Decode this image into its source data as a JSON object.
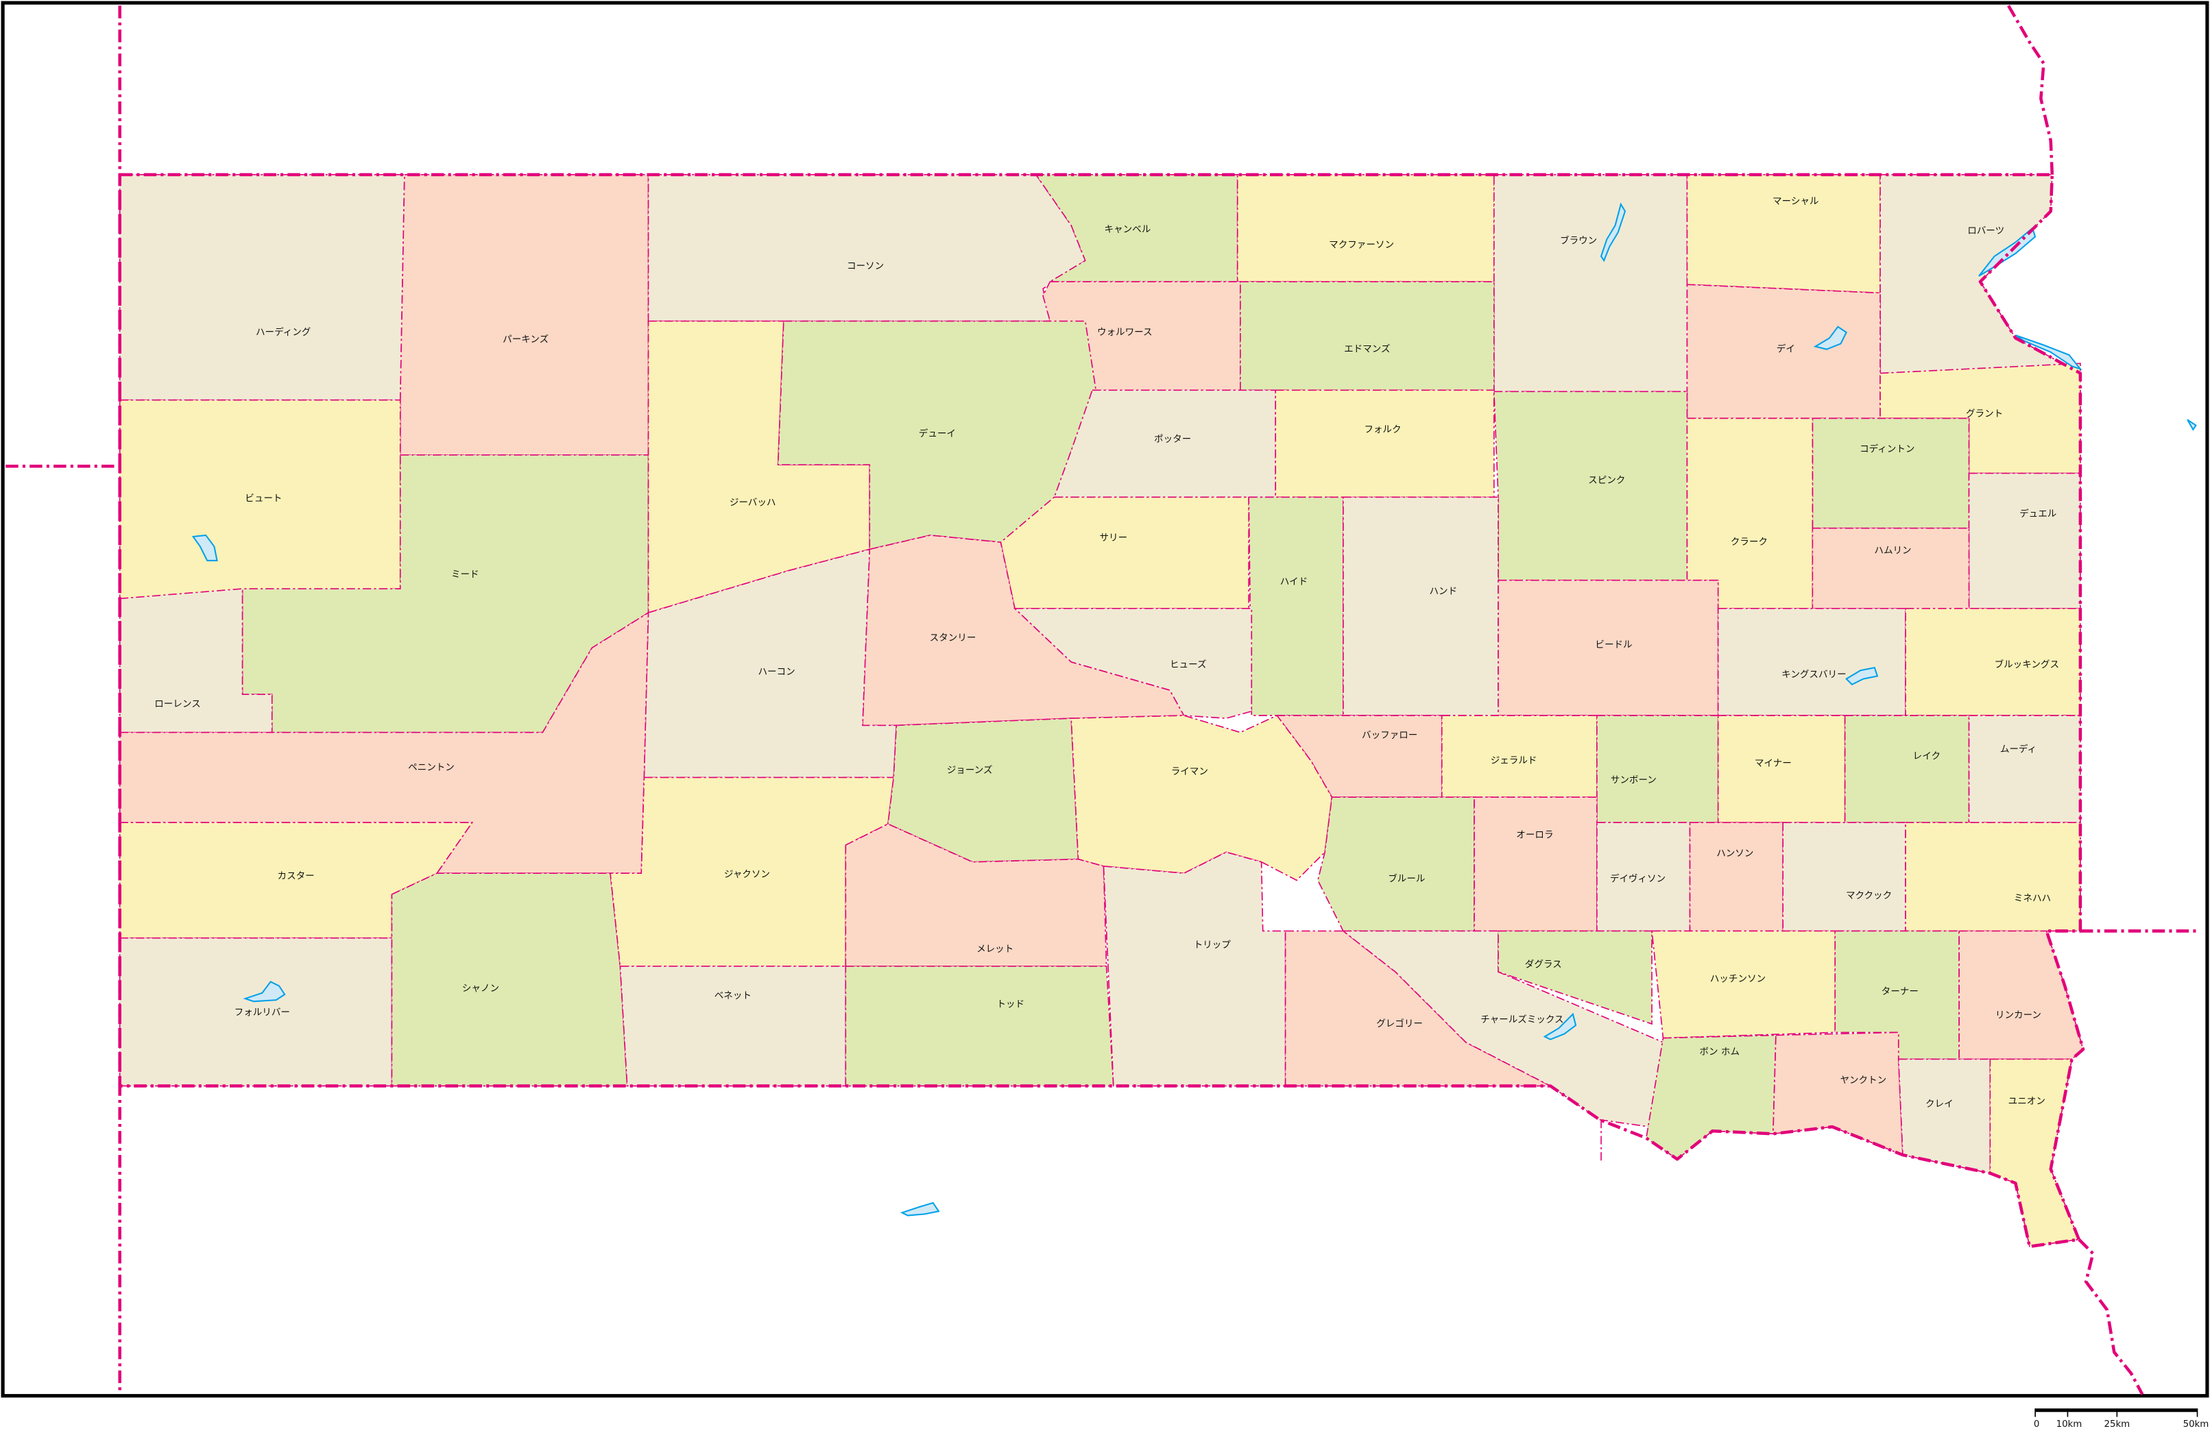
{
  "map": {
    "palette": {
      "beige": "#f0ead4",
      "peach": "#fbd9c6",
      "yellow": "#faf2b8",
      "green": "#deeab2",
      "border": "#e2007a",
      "water": "#00a0e9",
      "frame": "#000000"
    },
    "counties": [
      {
        "name": "ハーディング",
        "color": "beige"
      },
      {
        "name": "パーキンズ",
        "color": "peach"
      },
      {
        "name": "コーソン",
        "color": "beige"
      },
      {
        "name": "キャンベル",
        "color": "green"
      },
      {
        "name": "マクファーソン",
        "color": "yellow"
      },
      {
        "name": "ブラウン",
        "color": "beige"
      },
      {
        "name": "マーシャル",
        "color": "yellow"
      },
      {
        "name": "ロバーツ",
        "color": "beige"
      },
      {
        "name": "ウォルワース",
        "color": "peach"
      },
      {
        "name": "エドマンズ",
        "color": "green"
      },
      {
        "name": "デイ",
        "color": "peach"
      },
      {
        "name": "ビュート",
        "color": "yellow"
      },
      {
        "name": "ミード",
        "color": "green"
      },
      {
        "name": "ジーバッハ",
        "color": "yellow"
      },
      {
        "name": "デューイ",
        "color": "green"
      },
      {
        "name": "ポッター",
        "color": "beige"
      },
      {
        "name": "フォルク",
        "color": "yellow"
      },
      {
        "name": "スピンク",
        "color": "green"
      },
      {
        "name": "グラント",
        "color": "yellow"
      },
      {
        "name": "コディントン",
        "color": "green"
      },
      {
        "name": "クラーク",
        "color": "yellow"
      },
      {
        "name": "デュエル",
        "color": "beige"
      },
      {
        "name": "ハムリン",
        "color": "peach"
      },
      {
        "name": "ローレンス",
        "color": "beige"
      },
      {
        "name": "サリー",
        "color": "yellow"
      },
      {
        "name": "ハイド",
        "color": "green"
      },
      {
        "name": "ハンド",
        "color": "beige"
      },
      {
        "name": "ビードル",
        "color": "peach"
      },
      {
        "name": "キングスバリー",
        "color": "beige"
      },
      {
        "name": "ブルッキングス",
        "color": "yellow"
      },
      {
        "name": "スタンリー",
        "color": "peach"
      },
      {
        "name": "ハーコン",
        "color": "beige"
      },
      {
        "name": "ヒューズ",
        "color": "beige"
      },
      {
        "name": "ペニントン",
        "color": "peach"
      },
      {
        "name": "カスター",
        "color": "yellow"
      },
      {
        "name": "フォルリバー",
        "color": "beige"
      },
      {
        "name": "シャノン",
        "color": "green"
      },
      {
        "name": "ジャクソン",
        "color": "yellow"
      },
      {
        "name": "ジョーンズ",
        "color": "green"
      },
      {
        "name": "バッファロー",
        "color": "peach"
      },
      {
        "name": "ジェラルド",
        "color": "yellow"
      },
      {
        "name": "サンボーン",
        "color": "green"
      },
      {
        "name": "マイナー",
        "color": "yellow"
      },
      {
        "name": "レイク",
        "color": "green"
      },
      {
        "name": "ムーディ",
        "color": "beige"
      },
      {
        "name": "ライマン",
        "color": "yellow"
      },
      {
        "name": "ブルール",
        "color": "green"
      },
      {
        "name": "オーロラ",
        "color": "peach"
      },
      {
        "name": "デイヴィソン",
        "color": "beige"
      },
      {
        "name": "ハンソン",
        "color": "peach"
      },
      {
        "name": "マククック",
        "color": "beige"
      },
      {
        "name": "ミネハハ",
        "color": "yellow"
      },
      {
        "name": "メレット",
        "color": "peach"
      },
      {
        "name": "ベネット",
        "color": "beige"
      },
      {
        "name": "トッド",
        "color": "green"
      },
      {
        "name": "トリップ",
        "color": "beige"
      },
      {
        "name": "グレゴリー",
        "color": "peach"
      },
      {
        "name": "チャールズミックス",
        "color": "beige"
      },
      {
        "name": "ダグラス",
        "color": "green"
      },
      {
        "name": "ハッチンソン",
        "color": "yellow"
      },
      {
        "name": "ターナー",
        "color": "green"
      },
      {
        "name": "リンカーン",
        "color": "peach"
      },
      {
        "name": "ボン ホム",
        "color": "green"
      },
      {
        "name": "ヤンクトン",
        "color": "peach"
      },
      {
        "name": "クレイ",
        "color": "beige"
      },
      {
        "name": "ユニオン",
        "color": "yellow"
      }
    ]
  },
  "scale_bar": {
    "labels": [
      "0",
      "10km",
      "25km",
      "50km"
    ]
  }
}
